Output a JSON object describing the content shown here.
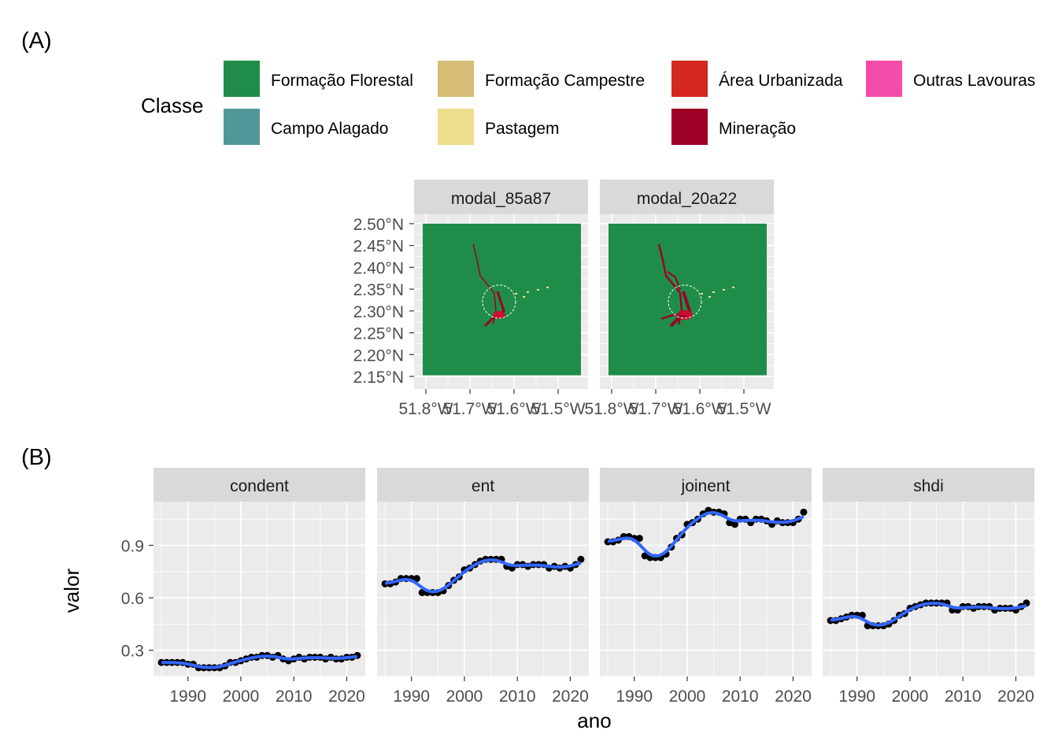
{
  "panel_a": {
    "label": "(A)",
    "legend": {
      "title": "Classe",
      "items": [
        {
          "label": "Formação Florestal",
          "color": "#1f8d49"
        },
        {
          "label": "Campo Alagado",
          "color": "#519799"
        },
        {
          "label": "Formação Campestre",
          "color": "#d6bc74"
        },
        {
          "label": "Pastagem",
          "color": "#edde8e"
        },
        {
          "label": "Área Urbanizada",
          "color": "#d4271e"
        },
        {
          "label": "Mineração",
          "color": "#9c0027"
        },
        {
          "label": "Outras Lavouras",
          "color": "#f54ca9"
        }
      ]
    },
    "maps": [
      {
        "strip": "modal_85a87"
      },
      {
        "strip": "modal_20a22"
      }
    ],
    "y_ticks": [
      "2.50°N",
      "2.45°N",
      "2.40°N",
      "2.35°N",
      "2.30°N",
      "2.25°N",
      "2.20°N",
      "2.15°N"
    ],
    "x_ticks": [
      "51.8°W",
      "51.7°W",
      "51.6°W",
      "51.5°W"
    ]
  },
  "panel_b": {
    "label": "(B)",
    "xlabel": "ano",
    "ylabel": "valor",
    "y_ticks": [
      "0.9",
      "0.6",
      "0.3"
    ],
    "x_ticks": [
      "1990",
      "2000",
      "2010",
      "2020"
    ]
  },
  "chart_data": [
    {
      "type": "raster-map",
      "facets": [
        "modal_85a87",
        "modal_20a22"
      ],
      "xlim": [
        -51.82,
        -51.45
      ],
      "ylim": [
        2.14,
        2.51
      ],
      "legend_title": "Classe",
      "legend_position": "top"
    },
    {
      "type": "scatter",
      "xlabel": "ano",
      "ylabel": "valor",
      "xlim": [
        1983.5,
        2023.5
      ],
      "ylim": [
        0.15,
        1.15
      ],
      "smooth_color": "#3366ff",
      "point_color": "#000000",
      "x": [
        1985,
        1986,
        1987,
        1988,
        1989,
        1990,
        1991,
        1992,
        1993,
        1994,
        1995,
        1996,
        1997,
        1998,
        1999,
        2000,
        2001,
        2002,
        2003,
        2004,
        2005,
        2006,
        2007,
        2008,
        2009,
        2010,
        2011,
        2012,
        2013,
        2014,
        2015,
        2016,
        2017,
        2018,
        2019,
        2020,
        2021,
        2022
      ],
      "series": [
        {
          "name": "condent",
          "values": [
            0.23,
            0.23,
            0.23,
            0.23,
            0.23,
            0.22,
            0.22,
            0.2,
            0.2,
            0.2,
            0.2,
            0.2,
            0.21,
            0.23,
            0.23,
            0.24,
            0.25,
            0.26,
            0.26,
            0.27,
            0.27,
            0.26,
            0.27,
            0.25,
            0.24,
            0.25,
            0.26,
            0.25,
            0.26,
            0.26,
            0.26,
            0.25,
            0.26,
            0.25,
            0.25,
            0.26,
            0.26,
            0.27
          ]
        },
        {
          "name": "ent",
          "values": [
            0.68,
            0.68,
            0.69,
            0.71,
            0.71,
            0.71,
            0.71,
            0.63,
            0.63,
            0.63,
            0.63,
            0.64,
            0.67,
            0.7,
            0.72,
            0.76,
            0.77,
            0.79,
            0.81,
            0.82,
            0.82,
            0.82,
            0.82,
            0.78,
            0.77,
            0.79,
            0.79,
            0.78,
            0.79,
            0.79,
            0.79,
            0.77,
            0.78,
            0.77,
            0.78,
            0.77,
            0.79,
            0.82
          ]
        },
        {
          "name": "joinent",
          "values": [
            0.92,
            0.92,
            0.93,
            0.95,
            0.95,
            0.94,
            0.94,
            0.84,
            0.83,
            0.83,
            0.83,
            0.85,
            0.89,
            0.94,
            0.96,
            1.02,
            1.03,
            1.05,
            1.08,
            1.1,
            1.09,
            1.09,
            1.08,
            1.03,
            1.02,
            1.05,
            1.05,
            1.03,
            1.05,
            1.05,
            1.04,
            1.02,
            1.04,
            1.03,
            1.03,
            1.03,
            1.05,
            1.09
          ]
        },
        {
          "name": "shdi",
          "values": [
            0.47,
            0.47,
            0.48,
            0.49,
            0.5,
            0.5,
            0.5,
            0.44,
            0.44,
            0.44,
            0.44,
            0.45,
            0.47,
            0.5,
            0.51,
            0.54,
            0.55,
            0.56,
            0.57,
            0.57,
            0.57,
            0.57,
            0.57,
            0.53,
            0.53,
            0.55,
            0.55,
            0.54,
            0.55,
            0.55,
            0.55,
            0.53,
            0.54,
            0.54,
            0.54,
            0.53,
            0.55,
            0.57
          ]
        }
      ]
    }
  ]
}
